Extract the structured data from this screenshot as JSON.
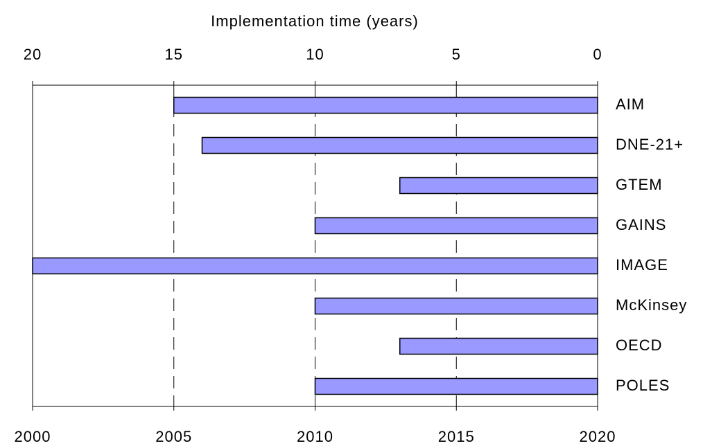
{
  "chart_data": {
    "type": "barh",
    "xlabel": "Implementation time (years)",
    "categories": [
      "AIM",
      "DNE-21+",
      "GTEM",
      "GAINS",
      "IMAGE",
      "McKinsey",
      "OECD",
      "POLES"
    ],
    "values": [
      15,
      14,
      7,
      10,
      20,
      10,
      7,
      10
    ],
    "color": "#9999ff",
    "xlim": [
      20,
      0
    ],
    "xticks": [
      20,
      15,
      10,
      5,
      0
    ],
    "x2lim": [
      2000,
      2020
    ],
    "x2ticks": [
      2000,
      2005,
      2010,
      2015,
      2020
    ],
    "grid": true
  }
}
